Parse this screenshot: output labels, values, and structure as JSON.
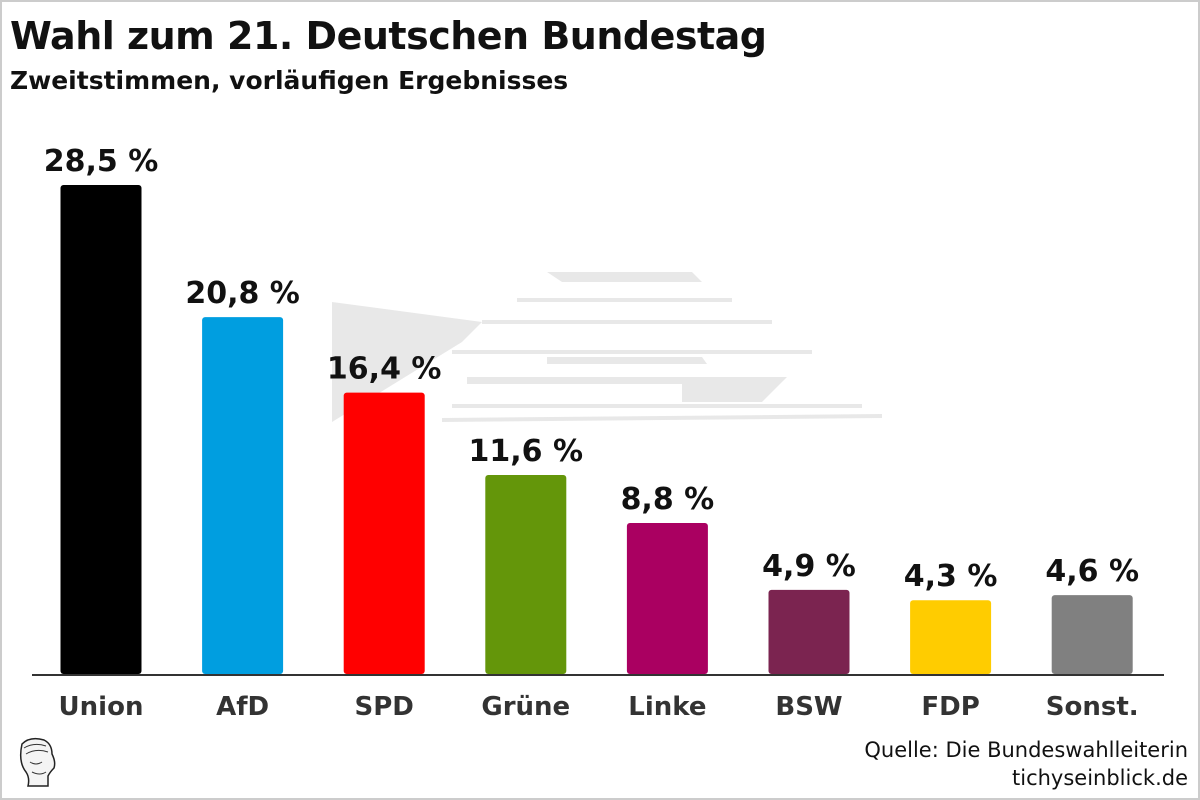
{
  "header": {
    "title": "Wahl zum 21. Deutschen Bundestag",
    "subtitle": "Zweitstimmen, vorläufigen Ergebnisses"
  },
  "footer": {
    "source": "Quelle: Die Bundeswahlleiterin",
    "site": "tichyseinblick.de",
    "logo_icon": "hermes-head-logo-icon"
  },
  "chart_data": {
    "type": "bar",
    "title": "Wahl zum 21. Deutschen Bundestag",
    "subtitle": "Zweitstimmen, vorläufigen Ergebnisses",
    "xlabel": "",
    "ylabel": "",
    "ylim": [
      0,
      28.5
    ],
    "grid": false,
    "categories": [
      "Union",
      "AfD",
      "SPD",
      "Grüne",
      "Linke",
      "BSW",
      "FDP",
      "Sonst."
    ],
    "values": [
      28.5,
      20.8,
      16.4,
      11.6,
      8.8,
      4.9,
      4.3,
      4.6
    ],
    "labels": [
      "28,5 %",
      "20,8 %",
      "16,4 %",
      "11,6 %",
      "8,8 %",
      "4,9 %",
      "4,3 %",
      "4,6 %"
    ],
    "colors": [
      "#000000",
      "#009ee0",
      "#ff0000",
      "#64960a",
      "#aa0061",
      "#7b2450",
      "#ffcc00",
      "#808080"
    ]
  }
}
